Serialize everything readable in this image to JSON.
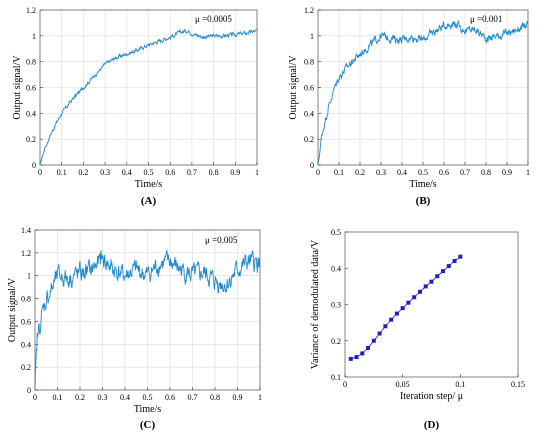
{
  "chart_data": [
    {
      "id": "A",
      "type": "line",
      "label": "(A)",
      "annotation": "μ =0.0005",
      "xlabel": "Time/s",
      "ylabel": "Output signal/V",
      "xlim": [
        0,
        1
      ],
      "ylim": [
        0,
        1.2
      ],
      "xticks": [
        "0",
        "0.1",
        "0.2",
        "0.3",
        "0.4",
        "0.5",
        "0.6",
        "0.7",
        "0.8",
        "0.9",
        "1"
      ],
      "yticks": [
        "0",
        "0.2",
        "0.4",
        "0.6",
        "0.8",
        "1",
        "1.2"
      ],
      "grid": true,
      "color": "#1f8ac7",
      "noise": 0.012,
      "series": [
        {
          "x": [
            0,
            0.02,
            0.05,
            0.08,
            0.1,
            0.15,
            0.2,
            0.25,
            0.3,
            0.35,
            0.4,
            0.45,
            0.5,
            0.55,
            0.6,
            0.65,
            0.68,
            0.7,
            0.75,
            0.8,
            0.85,
            0.9,
            0.95,
            1
          ],
          "y": [
            0,
            0.12,
            0.24,
            0.34,
            0.4,
            0.51,
            0.6,
            0.69,
            0.78,
            0.83,
            0.86,
            0.89,
            0.93,
            0.96,
            0.99,
            1.03,
            1.04,
            1.02,
            0.99,
            1.0,
            1.0,
            1.01,
            1.02,
            1.04
          ]
        }
      ]
    },
    {
      "id": "B",
      "type": "line",
      "label": "(B)",
      "annotation": "μ =0.001",
      "xlabel": "Time/s",
      "ylabel": "Output signal/V",
      "xlim": [
        0,
        1
      ],
      "ylim": [
        0,
        1.2
      ],
      "xticks": [
        "0",
        "0.1",
        "0.2",
        "0.3",
        "0.4",
        "0.5",
        "0.6",
        "0.7",
        "0.8",
        "0.9",
        "1"
      ],
      "yticks": [
        "0",
        "0.2",
        "0.4",
        "0.6",
        "0.8",
        "1",
        "1.2"
      ],
      "grid": true,
      "color": "#1f8ac7",
      "noise": 0.025,
      "series": [
        {
          "x": [
            0,
            0.02,
            0.05,
            0.08,
            0.1,
            0.15,
            0.2,
            0.25,
            0.3,
            0.35,
            0.4,
            0.45,
            0.5,
            0.55,
            0.6,
            0.65,
            0.7,
            0.75,
            0.8,
            0.85,
            0.9,
            0.95,
            1
          ],
          "y": [
            0,
            0.25,
            0.45,
            0.6,
            0.68,
            0.78,
            0.86,
            0.93,
            1.0,
            0.98,
            0.97,
            0.99,
            0.97,
            1.03,
            1.08,
            1.1,
            1.04,
            1.05,
            0.98,
            1.0,
            1.02,
            1.05,
            1.08
          ]
        }
      ]
    },
    {
      "id": "C",
      "type": "line",
      "label": "(C)",
      "annotation": "μ =0.005",
      "xlabel": "Time/s",
      "ylabel": "Output signal/V",
      "xlim": [
        0,
        1
      ],
      "ylim": [
        0,
        1.4
      ],
      "xticks": [
        "0",
        "0.1",
        "0.2",
        "0.3",
        "0.4",
        "0.5",
        "0.6",
        "0.7",
        "0.8",
        "0.9",
        "1"
      ],
      "yticks": [
        "0",
        "0.2",
        "0.4",
        "0.6",
        "0.8",
        "1",
        "1.2",
        "1.4"
      ],
      "grid": true,
      "color": "#1f8ac7",
      "noise": 0.07,
      "series": [
        {
          "x": [
            0,
            0.01,
            0.03,
            0.05,
            0.08,
            0.1,
            0.15,
            0.2,
            0.25,
            0.3,
            0.35,
            0.4,
            0.45,
            0.5,
            0.55,
            0.6,
            0.65,
            0.7,
            0.75,
            0.8,
            0.85,
            0.9,
            0.95,
            1
          ],
          "y": [
            0,
            0.45,
            0.65,
            0.8,
            0.9,
            1.0,
            0.98,
            1.02,
            1.05,
            1.15,
            1.05,
            1.0,
            1.05,
            1.0,
            1.1,
            1.12,
            1.05,
            1.0,
            1.02,
            0.95,
            0.92,
            1.05,
            1.12,
            1.1
          ]
        }
      ]
    },
    {
      "id": "D",
      "type": "scatter",
      "label": "(D)",
      "xlabel": "Iteration step/ μ",
      "ylabel": "Variance of demodulated data/V",
      "xlim": [
        0,
        0.15
      ],
      "ylim": [
        0.1,
        0.5
      ],
      "xticks": [
        "0",
        "0.05",
        "0.1",
        "0.15"
      ],
      "yticks": [
        "0.1",
        "0.2",
        "0.3",
        "0.4",
        "0.5"
      ],
      "grid": false,
      "color": "#1f1fbf",
      "series": [
        {
          "x": [
            0.005,
            0.01,
            0.015,
            0.02,
            0.025,
            0.03,
            0.035,
            0.04,
            0.045,
            0.05,
            0.055,
            0.06,
            0.065,
            0.07,
            0.075,
            0.08,
            0.085,
            0.09,
            0.095,
            0.1
          ],
          "y": [
            0.15,
            0.155,
            0.165,
            0.18,
            0.2,
            0.22,
            0.24,
            0.258,
            0.275,
            0.29,
            0.305,
            0.32,
            0.335,
            0.35,
            0.363,
            0.378,
            0.392,
            0.406,
            0.42,
            0.432
          ]
        }
      ]
    }
  ]
}
